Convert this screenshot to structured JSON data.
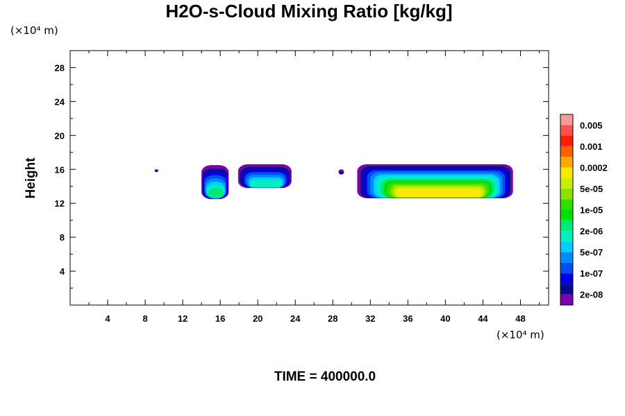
{
  "chart_data": {
    "type": "heatmap",
    "title": "H2O-s-Cloud Mixing Ratio [kg/kg]",
    "xlabel": "",
    "ylabel": "Height",
    "x_unit": "(×10⁴ m)",
    "y_unit": "(×10⁴ m)",
    "xlim": [
      0,
      51
    ],
    "ylim": [
      0,
      30
    ],
    "x_ticks": [
      4,
      8,
      12,
      16,
      20,
      24,
      28,
      32,
      36,
      40,
      44,
      48
    ],
    "y_ticks": [
      4,
      8,
      12,
      16,
      20,
      24,
      28
    ],
    "colorbar": {
      "colors": [
        "#7a00b0",
        "#0a0a90",
        "#0000e6",
        "#0050f0",
        "#008cff",
        "#00d2ff",
        "#00f0c0",
        "#00e87a",
        "#00e000",
        "#30e000",
        "#8ee000",
        "#c8f000",
        "#ffe800",
        "#ffaa00",
        "#ff6000",
        "#ff1e00",
        "#ff5050",
        "#ff9a9a"
      ],
      "labels": [
        "2e-08",
        "1e-07",
        "5e-07",
        "2e-06",
        "1e-05",
        "5e-05",
        "0.0002",
        "0.001",
        "0.005"
      ]
    },
    "cloud_regions": [
      {
        "x_range": [
          9.0,
          9.4
        ],
        "height_range": [
          15.7,
          16.0
        ],
        "max_level": 1
      },
      {
        "x_range": [
          14.0,
          16.9
        ],
        "height_range": [
          12.5,
          16.5
        ],
        "max_level": 7
      },
      {
        "x_range": [
          17.9,
          23.6
        ],
        "height_range": [
          13.8,
          16.6
        ],
        "max_level": 6
      },
      {
        "x_range": [
          28.6,
          29.2
        ],
        "height_range": [
          15.4,
          16.0
        ],
        "max_level": 1
      },
      {
        "x_range": [
          30.6,
          47.2
        ],
        "height_range": [
          12.6,
          16.6
        ],
        "max_level": 12
      }
    ],
    "time_label": "TIME = 400000.0"
  }
}
